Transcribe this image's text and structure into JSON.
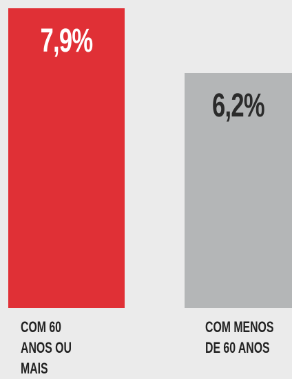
{
  "chart_data": {
    "type": "bar",
    "categories": [
      "COM 60 ANOS OU MAIS",
      "COM MENOS DE 60 ANOS"
    ],
    "values": [
      7.9,
      6.2
    ],
    "value_labels": [
      "7,9%",
      "6,2%"
    ],
    "colors": [
      "#e03036",
      "#b4b6b7"
    ],
    "label_colors": [
      "#ffffff",
      "#2b2b2b"
    ]
  }
}
